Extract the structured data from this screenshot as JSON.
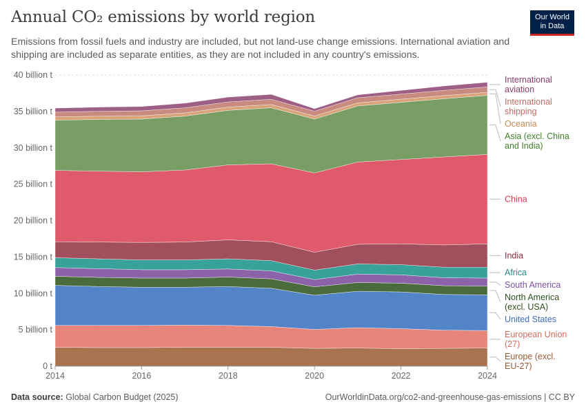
{
  "header": {
    "title": "Annual CO₂ emissions by world region",
    "subtitle": "Emissions from fossil fuels and industry are included, but not land-use change emissions. International aviation and shipping are included as separate entities, as they are not included in any country's emissions."
  },
  "logo": {
    "line1": "Our World",
    "line2": "in Data"
  },
  "footer": {
    "source_label": "Data source:",
    "source_text": " Global Carbon Budget (2025)",
    "right_text": "OurWorldinData.org/co2-and-greenhouse-gas-emissions | CC BY"
  },
  "chart_data": {
    "type": "area",
    "stacked": true,
    "x": [
      2014,
      2015,
      2016,
      2017,
      2018,
      2019,
      2020,
      2021,
      2022,
      2023,
      2024
    ],
    "xticks": [
      2014,
      2016,
      2018,
      2020,
      2022,
      2024
    ],
    "xtick_labels": [
      "2014",
      "2016",
      "2018",
      "2020",
      "2022",
      "2024"
    ],
    "ylim": [
      0,
      40
    ],
    "yticks": [
      0,
      5,
      10,
      15,
      20,
      25,
      30,
      35,
      40
    ],
    "ytick_labels": [
      "0 t",
      "5 billion t",
      "10 billion t",
      "15 billion t",
      "20 billion t",
      "25 billion t",
      "30 billion t",
      "35 billion t",
      "40 billion t"
    ],
    "grid": true,
    "legend": "right",
    "series": [
      {
        "name": "Europe (excl. EU-27)",
        "label_lines": [
          "Europe (excl.",
          "EU-27)"
        ],
        "color": "#a9734f",
        "text_color": "#9a5a35",
        "values": [
          2.6,
          2.55,
          2.55,
          2.6,
          2.6,
          2.6,
          2.45,
          2.5,
          2.4,
          2.45,
          2.5
        ]
      },
      {
        "name": "European Union (27)",
        "label_lines": [
          "European Union",
          "(27)"
        ],
        "color": "#e8857a",
        "text_color": "#d66b5d",
        "values": [
          3.0,
          3.05,
          3.05,
          3.05,
          3.0,
          2.85,
          2.6,
          2.8,
          2.75,
          2.5,
          2.4
        ]
      },
      {
        "name": "United States",
        "label_lines": [
          "United States"
        ],
        "color": "#5484c8",
        "text_color": "#3c6dbf",
        "values": [
          5.5,
          5.35,
          5.25,
          5.2,
          5.35,
          5.25,
          4.7,
          5.0,
          5.05,
          4.9,
          4.9
        ]
      },
      {
        "name": "North America (excl. USA)",
        "label_lines": [
          "North America",
          "(excl. USA)"
        ],
        "color": "#4a6b3b",
        "text_color": "#2f4d1d",
        "values": [
          1.25,
          1.25,
          1.25,
          1.25,
          1.3,
          1.3,
          1.15,
          1.2,
          1.2,
          1.2,
          1.2
        ]
      },
      {
        "name": "South America",
        "label_lines": [
          "South America"
        ],
        "color": "#8c63a8",
        "text_color": "#7a4fa0",
        "values": [
          1.2,
          1.2,
          1.15,
          1.15,
          1.1,
          1.1,
          1.0,
          1.15,
          1.15,
          1.1,
          1.1
        ]
      },
      {
        "name": "Africa",
        "label_lines": [
          "Africa"
        ],
        "color": "#37a19a",
        "text_color": "#1f8f86",
        "values": [
          1.35,
          1.35,
          1.35,
          1.35,
          1.4,
          1.4,
          1.3,
          1.4,
          1.4,
          1.45,
          1.5
        ]
      },
      {
        "name": "India",
        "label_lines": [
          "India"
        ],
        "color": "#a24f5d",
        "text_color": "#8c2a3f",
        "values": [
          2.2,
          2.3,
          2.4,
          2.45,
          2.6,
          2.6,
          2.45,
          2.7,
          2.85,
          3.05,
          3.2
        ]
      },
      {
        "name": "China",
        "label_lines": [
          "China"
        ],
        "color": "#df5b6c",
        "text_color": "#d6384f",
        "values": [
          9.8,
          9.75,
          9.7,
          9.9,
          10.3,
          10.7,
          10.9,
          11.3,
          11.6,
          12.1,
          12.3
        ]
      },
      {
        "name": "Asia (excl. China and India)",
        "label_lines": [
          "Asia (excl. China",
          "and India)"
        ],
        "color": "#789e66",
        "text_color": "#3f7f2c",
        "values": [
          6.9,
          7.1,
          7.25,
          7.4,
          7.5,
          7.7,
          7.4,
          7.7,
          7.85,
          8.0,
          8.1
        ]
      },
      {
        "name": "Oceania",
        "label_lines": [
          "Oceania"
        ],
        "color": "#d9a479",
        "text_color": "#c28d55",
        "values": [
          0.45,
          0.45,
          0.45,
          0.45,
          0.45,
          0.45,
          0.42,
          0.43,
          0.43,
          0.43,
          0.43
        ]
      },
      {
        "name": "International shipping",
        "label_lines": [
          "International",
          "shipping"
        ],
        "color": "#c98a80",
        "text_color": "#bd6b61",
        "values": [
          0.65,
          0.67,
          0.68,
          0.7,
          0.7,
          0.72,
          0.66,
          0.7,
          0.7,
          0.72,
          0.73
        ]
      },
      {
        "name": "International aviation",
        "label_lines": [
          "International",
          "aviation"
        ],
        "color": "#9e5f86",
        "text_color": "#8c3b6b",
        "values": [
          0.55,
          0.57,
          0.6,
          0.63,
          0.66,
          0.67,
          0.35,
          0.4,
          0.5,
          0.6,
          0.65
        ]
      }
    ]
  }
}
